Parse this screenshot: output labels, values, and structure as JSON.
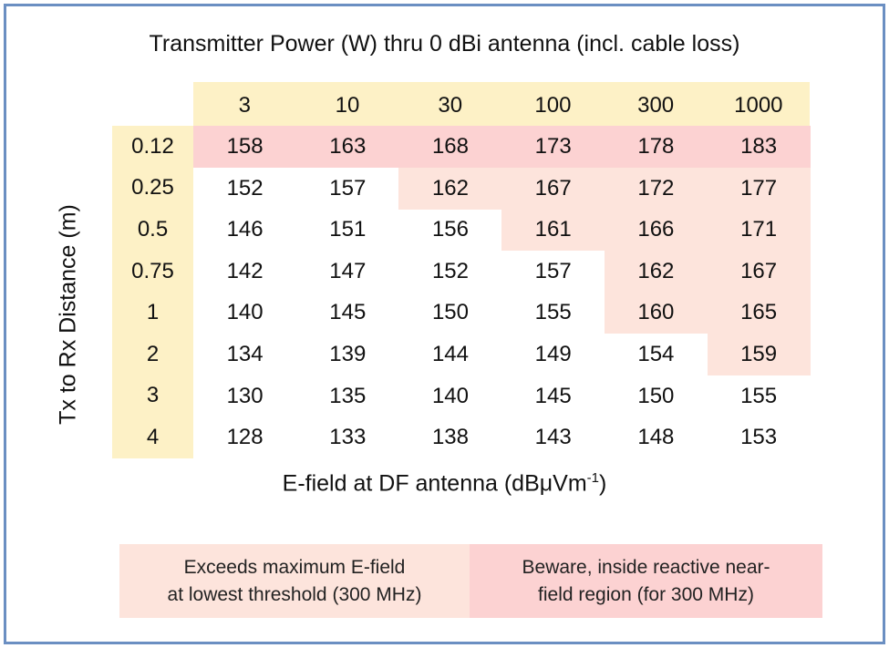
{
  "title": "Transmitter Power (W) thru 0 dBi antenna (incl. cable loss)",
  "y_label": "Tx to Rx Distance (m)",
  "x_label": {
    "text": "E-field at DF antenna (dBμVm",
    "sup": "-1",
    "end": ")"
  },
  "table": {
    "columns": [
      "3",
      "10",
      "30",
      "100",
      "300",
      "1000"
    ],
    "row_labels": [
      "0.12",
      "0.25",
      "0.5",
      "0.75",
      "1",
      "2",
      "3",
      "4"
    ],
    "rows": [
      [
        "158",
        "163",
        "168",
        "173",
        "178",
        "183"
      ],
      [
        "152",
        "157",
        "162",
        "167",
        "172",
        "177"
      ],
      [
        "146",
        "151",
        "156",
        "161",
        "166",
        "171"
      ],
      [
        "142",
        "147",
        "152",
        "157",
        "162",
        "167"
      ],
      [
        "140",
        "145",
        "150",
        "155",
        "160",
        "165"
      ],
      [
        "134",
        "139",
        "144",
        "149",
        "154",
        "159"
      ],
      [
        "130",
        "135",
        "140",
        "145",
        "150",
        "155"
      ],
      [
        "128",
        "133",
        "138",
        "143",
        "148",
        "153"
      ]
    ]
  },
  "legend": [
    {
      "lines": [
        "Exceeds maximum E-field",
        "at lowest threshold (300 MHz)"
      ]
    },
    {
      "lines": [
        "Beware, inside reactive near-",
        "field region (for 300 MHz)"
      ]
    }
  ]
}
